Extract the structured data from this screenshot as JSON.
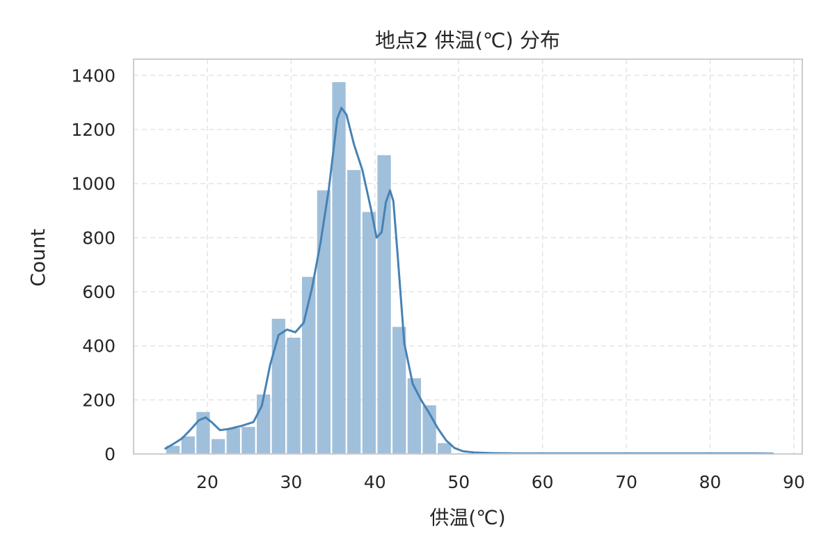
{
  "chart_data": {
    "type": "bar",
    "title": "地点2 供温(℃) 分布",
    "xlabel": "供温(℃)",
    "ylabel": "Count",
    "xlim": [
      11.2,
      91.0
    ],
    "ylim": [
      0,
      1460
    ],
    "xticks": [
      20,
      30,
      40,
      50,
      60,
      70,
      80,
      90
    ],
    "yticks": [
      0,
      200,
      400,
      600,
      800,
      1000,
      1200,
      1400
    ],
    "grid": true,
    "legend": "none",
    "bar_color": "#a0bfda",
    "line_color": "#4682b4",
    "bins": {
      "start": 15.0,
      "width": 1.8,
      "counts": [
        30,
        65,
        155,
        55,
        95,
        100,
        220,
        500,
        430,
        655,
        975,
        1375,
        1050,
        895,
        1105,
        470,
        280,
        180,
        40
      ]
    },
    "kde": {
      "x": [
        15,
        16,
        17,
        18,
        19,
        19.8,
        20.5,
        21.5,
        22.5,
        24,
        25.5,
        26.5,
        27.5,
        28.5,
        29.5,
        30.5,
        31.5,
        32.5,
        33.5,
        34.5,
        35.5,
        36,
        36.6,
        37.5,
        38.5,
        39.5,
        40.2,
        40.8,
        41.3,
        41.8,
        42.2,
        42.7,
        43.5,
        44.5,
        45.5,
        46.5,
        47.5,
        48.5,
        49.5,
        50.5,
        52,
        54,
        57,
        60,
        65,
        70,
        75,
        80,
        85,
        87.5
      ],
      "y": [
        20,
        38,
        58,
        90,
        125,
        135,
        118,
        88,
        92,
        103,
        118,
        178,
        330,
        440,
        460,
        450,
        485,
        615,
        780,
        980,
        1240,
        1280,
        1255,
        1145,
        1050,
        910,
        800,
        820,
        930,
        975,
        935,
        740,
        410,
        260,
        200,
        150,
        95,
        50,
        22,
        10,
        5,
        3,
        2,
        2,
        2,
        2,
        2,
        2,
        2,
        1
      ]
    }
  }
}
